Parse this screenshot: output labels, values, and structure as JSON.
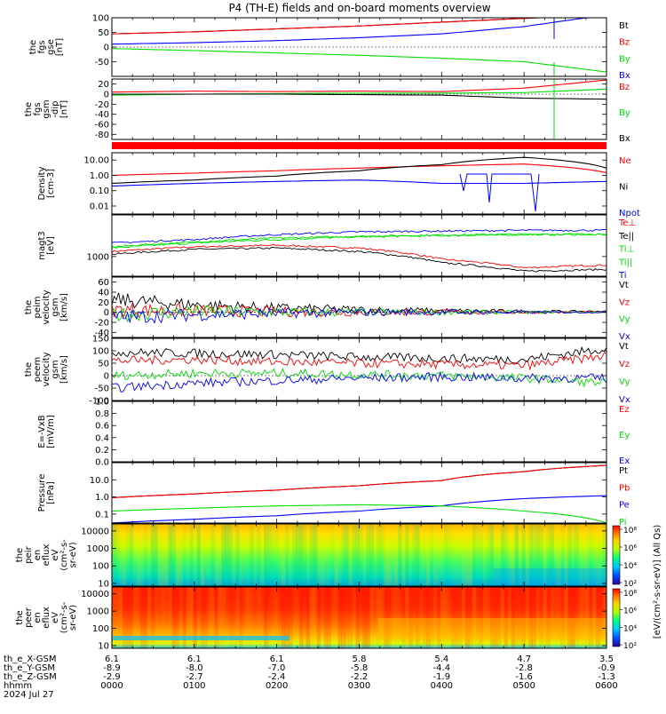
{
  "title": "P4 (TH-E) fields and on-board moments overview",
  "colors": {
    "black": "#000000",
    "red": "#ff0000",
    "green": "#00dd00",
    "blue": "#0000ff"
  },
  "x_hours": [
    "0000",
    "0100",
    "0200",
    "0300",
    "0400",
    "0500",
    "0600"
  ],
  "footer": {
    "labels": [
      "th_e_X-GSM",
      "th_e_Y-GSM",
      "th_e_Z-GSM",
      "hhmm",
      "2024 Jul 27"
    ],
    "rows": [
      [
        "6.1",
        "6.1",
        "6.1",
        "5.8",
        "5.4",
        "4.7",
        "3.5"
      ],
      [
        "-8.9",
        "-8.0",
        "-7.0",
        "-5.8",
        "-4.4",
        "-2.8",
        "-0.9"
      ],
      [
        "-2.9",
        "-2.7",
        "-2.4",
        "-2.2",
        "-1.9",
        "-1.6",
        "-1.3"
      ],
      [
        "0000",
        "0100",
        "0200",
        "0300",
        "0400",
        "0500",
        "0600"
      ]
    ]
  },
  "colorbar": {
    "label": "[eV/(cm²-s-sr-eV)] (All Qs)",
    "ticks_top": [
      "10⁸",
      "10⁶",
      "10⁴",
      "10²"
    ],
    "ticks_bottom": [
      "10⁸",
      "10⁶",
      "10⁴",
      "10²"
    ]
  },
  "chart_data": [
    {
      "id": "fgs_gse",
      "type": "line",
      "ylabel": [
        "the",
        "fgs",
        "gse",
        "[nT]"
      ],
      "ylim": [
        -100,
        100
      ],
      "yticks": [
        "100",
        "50",
        "0",
        "-50"
      ],
      "series": [
        {
          "name": "Bt",
          "color": "black",
          "x": [
            0,
            1,
            2,
            3,
            4,
            5,
            6
          ],
          "values": [
            45,
            52,
            62,
            72,
            85,
            98,
            110
          ]
        },
        {
          "name": "Bz",
          "color": "red",
          "x": [
            0,
            1,
            2,
            3,
            4,
            5,
            6
          ],
          "values": [
            45,
            52,
            62,
            72,
            85,
            98,
            110
          ]
        },
        {
          "name": "By",
          "color": "green",
          "x": [
            0,
            1,
            2,
            3,
            4,
            5,
            6
          ],
          "values": [
            -5,
            -12,
            -20,
            -28,
            -38,
            -50,
            -85
          ]
        },
        {
          "name": "Bx",
          "color": "blue",
          "x": [
            0,
            1,
            2,
            3,
            4,
            5,
            6
          ],
          "values": [
            10,
            15,
            22,
            32,
            45,
            70,
            110
          ]
        }
      ]
    },
    {
      "id": "fgs_gsm",
      "type": "line",
      "ylabel": [
        "the",
        "fgs",
        "gsm",
        "-dip",
        "[nT]"
      ],
      "ylim": [
        -90,
        30
      ],
      "yticks": [
        "20",
        "0",
        "-20",
        "-40",
        "-60",
        "-80"
      ],
      "series": [
        {
          "name": "Bz",
          "color": "red",
          "x": [
            0,
            1,
            2,
            3,
            4,
            5,
            6
          ],
          "values": [
            4,
            6,
            5,
            6,
            5,
            12,
            28
          ]
        },
        {
          "name": "By",
          "color": "green",
          "x": [
            0,
            1,
            2,
            3,
            4,
            5,
            6
          ],
          "values": [
            -2,
            0,
            1,
            2,
            2,
            3,
            10
          ]
        },
        {
          "name": "Bx",
          "color": "black",
          "x": [
            0,
            1,
            2,
            3,
            4,
            5,
            6
          ],
          "values": [
            0,
            0,
            0,
            -1,
            -2,
            -8,
            -10
          ]
        }
      ]
    },
    {
      "id": "density",
      "type": "line",
      "ylabel": [
        "Density",
        "[cm-3]"
      ],
      "yscale": "log",
      "ylim": [
        0.003,
        30
      ],
      "yticks": [
        "10.00",
        "1.00",
        "0.10",
        "0.01"
      ],
      "series": [
        {
          "name": "Ne",
          "color": "red",
          "x": [
            0,
            1,
            2,
            3,
            4,
            5,
            6
          ],
          "values": [
            1.0,
            1.4,
            2.0,
            3.0,
            4.2,
            5.5,
            1.5
          ]
        },
        {
          "name": "Ni",
          "color": "black",
          "x": [
            0,
            1,
            2,
            3,
            4,
            5,
            6
          ],
          "values": [
            0.3,
            0.5,
            0.9,
            2.0,
            5.0,
            15,
            3
          ]
        },
        {
          "name": "Npot",
          "color": "blue",
          "x": [
            0,
            1,
            2,
            3,
            4,
            5,
            6
          ],
          "values": [
            0.2,
            0.3,
            0.4,
            0.5,
            0.3,
            0.3,
            0.4
          ]
        }
      ]
    },
    {
      "id": "temperature",
      "type": "line",
      "ylabel": [
        "magt3",
        "[eV]"
      ],
      "yscale": "log",
      "ylim": [
        200,
        30000
      ],
      "yticks": [
        "1000"
      ],
      "series": [
        {
          "name": "Te⊥",
          "color": "red",
          "x": [
            0,
            1,
            2,
            3,
            4,
            5,
            6
          ],
          "values": [
            1500,
            2200,
            2500,
            2000,
            800,
            400,
            500
          ]
        },
        {
          "name": "Te||",
          "color": "black",
          "x": [
            0,
            1,
            2,
            3,
            4,
            5,
            6
          ],
          "values": [
            1200,
            1800,
            2000,
            1500,
            600,
            300,
            350
          ]
        },
        {
          "name": "Ti⊥",
          "color": "green",
          "x": [
            0,
            1,
            2,
            3,
            4,
            5,
            6
          ],
          "values": [
            2000,
            3000,
            4000,
            5000,
            5500,
            6000,
            6000
          ]
        },
        {
          "name": "Ti||",
          "color": "green",
          "x": [
            0,
            1,
            2,
            3,
            4,
            5,
            6
          ],
          "values": [
            2200,
            3300,
            4500,
            5200,
            5800,
            6200,
            6200
          ]
        },
        {
          "name": "Ti",
          "color": "blue",
          "x": [
            0,
            1,
            2,
            3,
            4,
            5,
            6
          ],
          "values": [
            3000,
            4000,
            6000,
            7500,
            8000,
            8500,
            8500
          ]
        }
      ]
    },
    {
      "id": "peim_velocity",
      "type": "line",
      "ylabel": [
        "the",
        "peim",
        "velocity",
        "gsm",
        "[km/s]"
      ],
      "ylim": [
        -50,
        70
      ],
      "yticks": [
        "60",
        "40",
        "20",
        "0",
        "-20",
        "-40"
      ],
      "series": [
        {
          "name": "Vt",
          "color": "black",
          "x": [
            0,
            1,
            2,
            3,
            4,
            5,
            6
          ],
          "values": [
            25,
            15,
            8,
            5,
            3,
            2,
            2
          ]
        },
        {
          "name": "Vz",
          "color": "red",
          "x": [
            0,
            1,
            2,
            3,
            4,
            5,
            6
          ],
          "values": [
            5,
            3,
            1,
            0,
            0,
            0,
            0
          ]
        },
        {
          "name": "Vy",
          "color": "green",
          "x": [
            0,
            1,
            2,
            3,
            4,
            5,
            6
          ],
          "values": [
            -5,
            2,
            0,
            0,
            0,
            0,
            0
          ]
        },
        {
          "name": "Vx",
          "color": "blue",
          "x": [
            0,
            1,
            2,
            3,
            4,
            5,
            6
          ],
          "values": [
            -10,
            -5,
            -2,
            0,
            0,
            0,
            0
          ]
        }
      ]
    },
    {
      "id": "peem_velocity",
      "type": "line",
      "ylabel": [
        "the",
        "peem",
        "velocity",
        "gsm",
        "[km/s]"
      ],
      "ylim": [
        -100,
        150
      ],
      "yticks": [
        "150",
        "100",
        "50",
        "0",
        "-50",
        "-100"
      ],
      "series": [
        {
          "name": "Vt",
          "color": "black",
          "x": [
            0,
            1,
            2,
            3,
            4,
            5,
            6
          ],
          "values": [
            95,
            90,
            85,
            75,
            70,
            65,
            110
          ]
        },
        {
          "name": "Vz",
          "color": "red",
          "x": [
            0,
            1,
            2,
            3,
            4,
            5,
            6
          ],
          "values": [
            60,
            65,
            55,
            50,
            45,
            40,
            80
          ]
        },
        {
          "name": "Vy",
          "color": "green",
          "x": [
            0,
            1,
            2,
            3,
            4,
            5,
            6
          ],
          "values": [
            0,
            10,
            10,
            5,
            0,
            -10,
            -30
          ]
        },
        {
          "name": "Vx",
          "color": "blue",
          "x": [
            0,
            1,
            2,
            3,
            4,
            5,
            6
          ],
          "values": [
            -50,
            -30,
            -20,
            -10,
            -5,
            -10,
            -10
          ]
        }
      ]
    },
    {
      "id": "efield",
      "type": "line",
      "ylabel": [
        "E=-VxB",
        "[mV/m]"
      ],
      "ylim": [
        0,
        1
      ],
      "yticks": [
        "1.0",
        "0.8",
        "0.6",
        "0.4",
        "0.2",
        "0.0"
      ],
      "legend": [
        {
          "name": "Ez",
          "color": "red"
        },
        {
          "name": "Ey",
          "color": "green"
        },
        {
          "name": "Ex",
          "color": "blue"
        }
      ],
      "series": []
    },
    {
      "id": "pressure",
      "type": "line",
      "ylabel": [
        "Pressure",
        "[nPa]"
      ],
      "yscale": "log",
      "ylim": [
        0.03,
        100
      ],
      "yticks": [
        "10.0",
        "1.0",
        "0.1"
      ],
      "series": [
        {
          "name": "Pt",
          "color": "black",
          "x": [
            0,
            1,
            2,
            3,
            4,
            5,
            6
          ],
          "values": [
            0.9,
            1.5,
            2.5,
            4.5,
            9,
            30,
            70
          ]
        },
        {
          "name": "Pb",
          "color": "red",
          "x": [
            0,
            1,
            2,
            3,
            4,
            5,
            6
          ],
          "values": [
            0.9,
            1.5,
            2.5,
            4.5,
            9,
            30,
            70
          ]
        },
        {
          "name": "Pe",
          "color": "blue",
          "x": [
            0,
            1,
            2,
            3,
            4,
            5,
            6
          ],
          "values": [
            0.03,
            0.05,
            0.08,
            0.15,
            0.3,
            0.8,
            1.2
          ]
        },
        {
          "name": "Pi",
          "color": "green",
          "x": [
            0,
            1,
            2,
            3,
            4,
            5,
            6
          ],
          "values": [
            0.15,
            0.22,
            0.3,
            0.35,
            0.3,
            0.15,
            0.03
          ]
        }
      ]
    },
    {
      "id": "peir_spec",
      "type": "heatmap",
      "ylabel": [
        "the",
        "peir",
        "en",
        "eflux",
        "eV",
        "(cm²-s-",
        "sr-eV)"
      ],
      "yscale": "log",
      "ylim": [
        7,
        25000
      ],
      "yticks": [
        "10000",
        "1000",
        "100",
        "10"
      ]
    },
    {
      "id": "peer_spec",
      "type": "heatmap",
      "ylabel": [
        "the",
        "peer",
        "en",
        "eflux",
        "eV",
        "(cm²-s-",
        "sr-eV)"
      ],
      "yscale": "log",
      "ylim": [
        7,
        25000
      ],
      "yticks": [
        "10000",
        "1000",
        "100",
        "10"
      ]
    }
  ]
}
